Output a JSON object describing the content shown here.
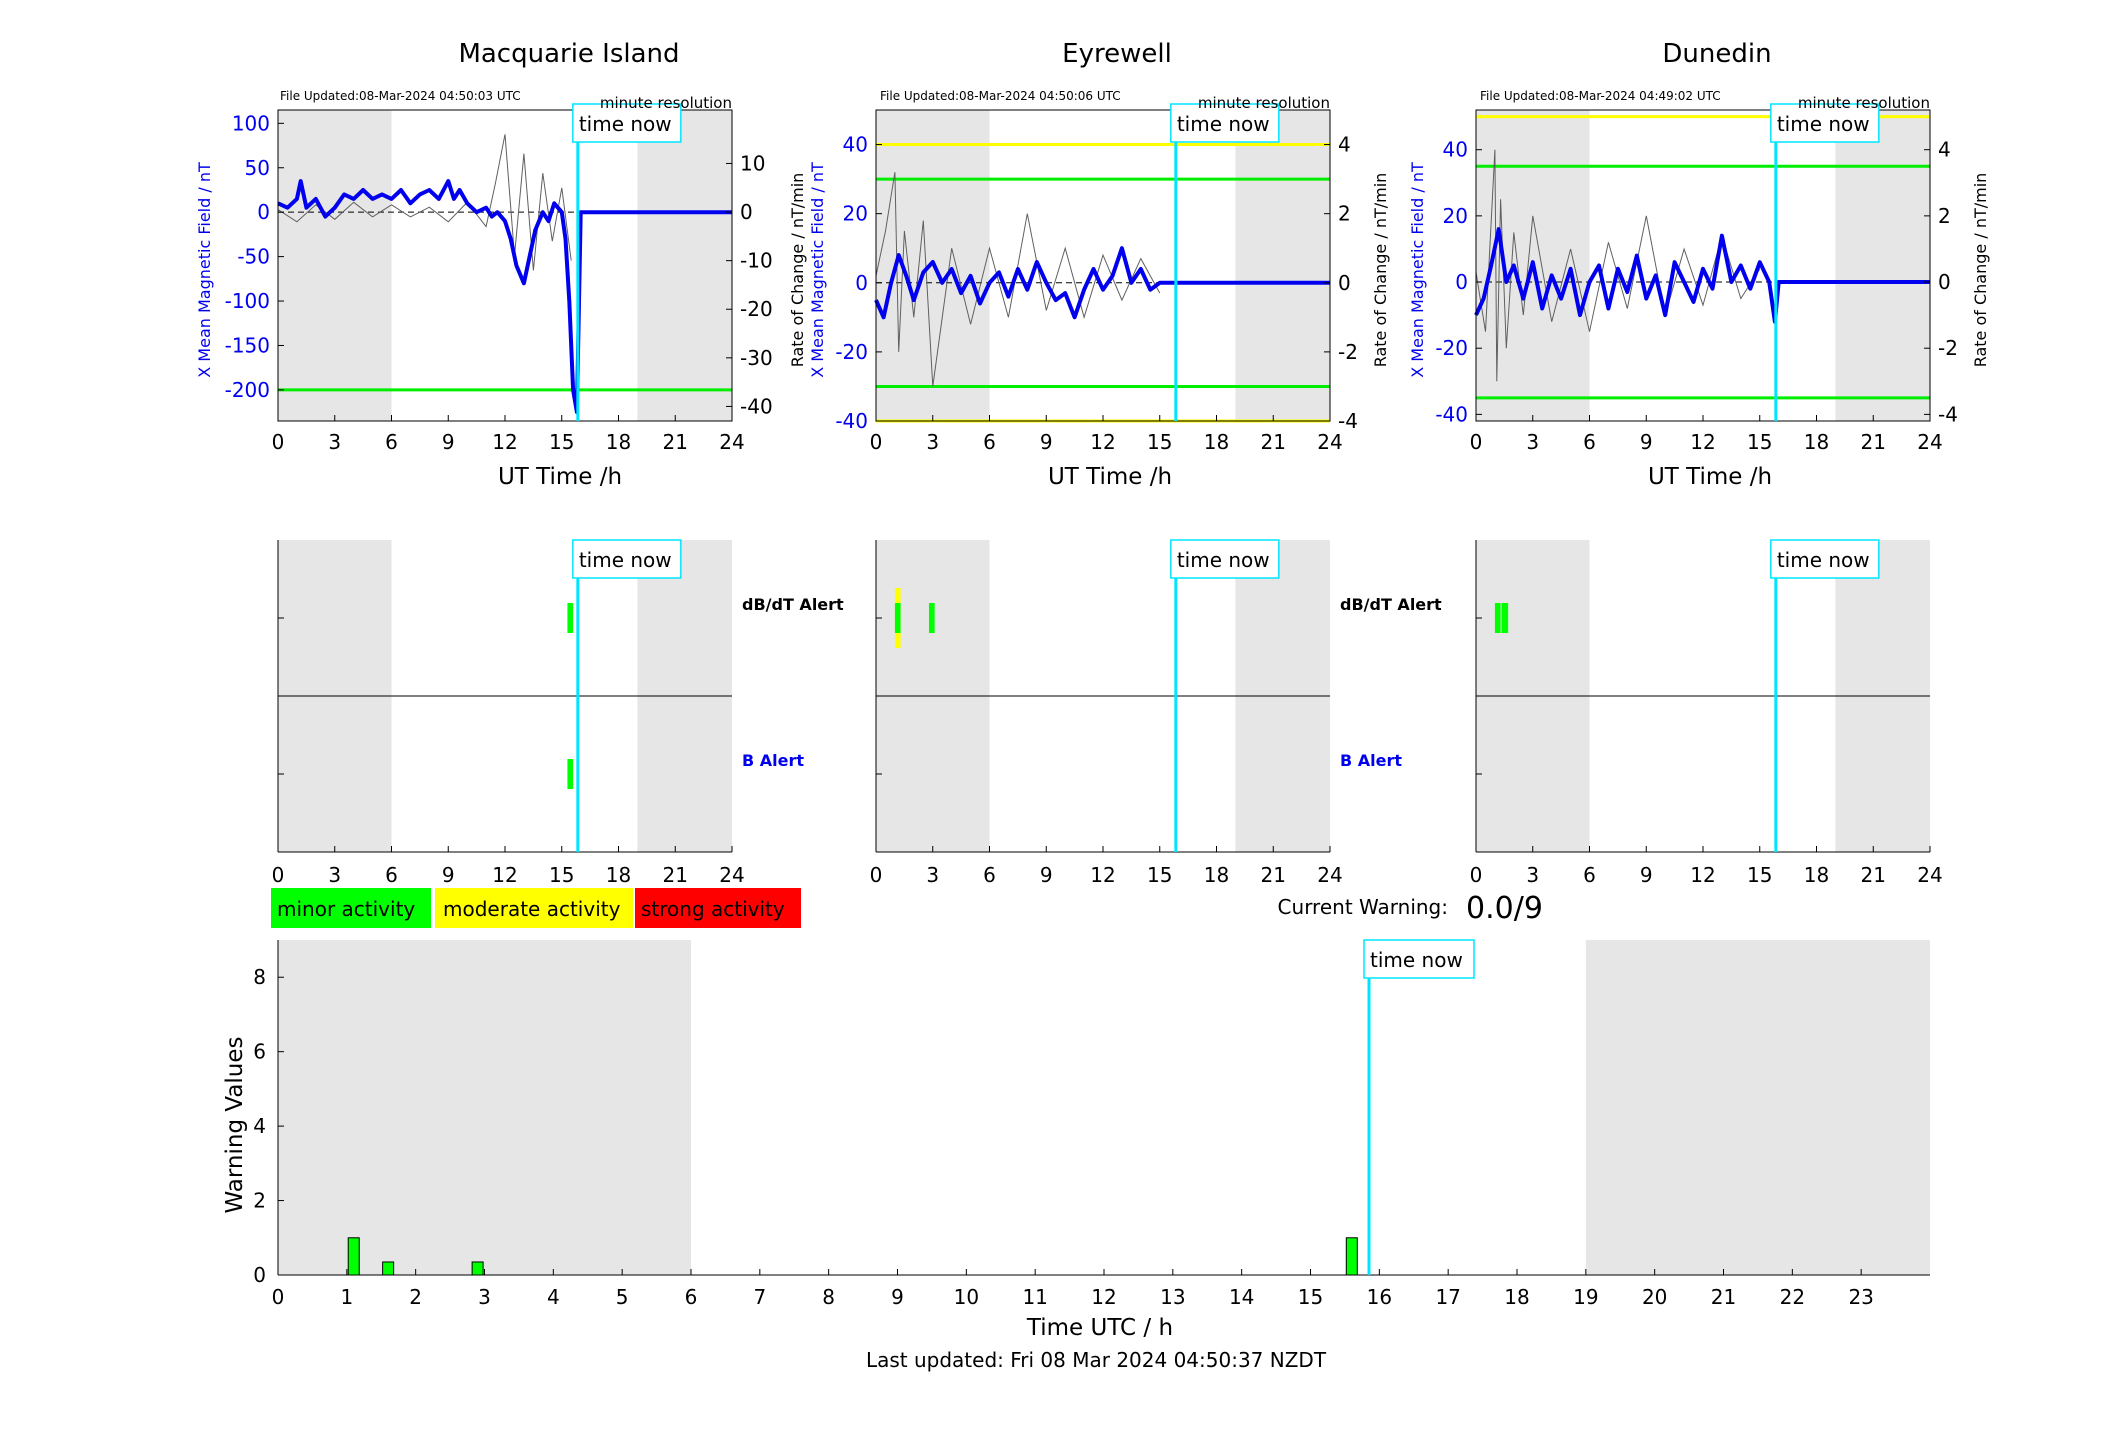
{
  "time_now_label": "time now",
  "now_hour": 15.85,
  "footer": {
    "last_updated": "Last updated: Fri 08 Mar 2024 04:50:37 NZDT"
  },
  "current_warning": {
    "label": "Current Warning:",
    "value": "0.0/9"
  },
  "legend": [
    {
      "label": "minor activity",
      "color": "#00ff00"
    },
    {
      "label": "moderate activity",
      "color": "#ffff00"
    },
    {
      "label": "strong activity",
      "color": "#ff0000"
    }
  ],
  "colors": {
    "field": "#0000ee",
    "threshold": "#00ee00",
    "threshold_high": "#ffff00",
    "now_line": "#00e5ff",
    "night_shade": "#e6e6e6",
    "rate": "#606060"
  },
  "chart_data": [
    {
      "type": "line",
      "title": "Macquarie Island",
      "file_updated": "File Updated:08-Mar-2024 04:50:03 UTC",
      "resolution": "minute resolution",
      "xlabel": "UT Time /h",
      "ylabel_left": "X Mean Magnetic Field / nT",
      "ylabel_right": "Rate of Change / nT/min",
      "xlim": [
        0,
        24
      ],
      "xticks": [
        0,
        3,
        6,
        9,
        12,
        15,
        18,
        21,
        24
      ],
      "ylim_left": [
        -235,
        115
      ],
      "yticks_left": [
        100,
        50,
        0,
        -50,
        -100,
        -150,
        -200
      ],
      "ylim_right": [
        -43,
        21
      ],
      "yticks_right": [
        10,
        0,
        -10,
        -20,
        -30,
        -40
      ],
      "night_shading": [
        [
          0,
          6
        ],
        [
          19,
          24
        ]
      ],
      "thresholds_left": [
        {
          "value": -200,
          "color": "#00ee00"
        }
      ],
      "field_x": [
        0,
        0.5,
        1,
        1.2,
        1.5,
        2,
        2.5,
        3,
        3.5,
        4,
        4.5,
        5,
        5.5,
        6,
        6.5,
        7,
        7.5,
        8,
        8.5,
        9,
        9.3,
        9.6,
        10,
        10.5,
        11,
        11.3,
        11.6,
        12,
        12.3,
        12.6,
        13,
        13.3,
        13.6,
        14,
        14.3,
        14.6,
        15,
        15.2,
        15.4,
        15.6,
        15.8,
        16,
        20,
        24
      ],
      "field_y": [
        10,
        5,
        15,
        35,
        5,
        15,
        -5,
        5,
        20,
        15,
        25,
        15,
        20,
        15,
        25,
        10,
        20,
        25,
        15,
        35,
        15,
        25,
        10,
        0,
        5,
        -5,
        0,
        -10,
        -30,
        -60,
        -80,
        -50,
        -20,
        0,
        -10,
        10,
        0,
        -30,
        -100,
        -200,
        -225,
        0,
        0,
        0
      ],
      "field_flat_from": 15.8,
      "rate_x": [
        0,
        1,
        2,
        3,
        4,
        5,
        6,
        7,
        8,
        9,
        10,
        11,
        11.5,
        12,
        12.5,
        13,
        13.5,
        14,
        14.5,
        15,
        15.5
      ],
      "rate_y": [
        0.5,
        -2,
        1.5,
        -1.5,
        2,
        -1,
        1.5,
        -1,
        1,
        -2,
        2,
        -3,
        6,
        16,
        -9,
        12,
        -12,
        8,
        -6,
        5,
        -10
      ]
    },
    {
      "type": "line",
      "title": "Eyrewell",
      "file_updated": "File Updated:08-Mar-2024 04:50:06 UTC",
      "resolution": "minute resolution",
      "xlabel": "UT Time /h",
      "ylabel_left": "X Mean Magnetic Field / nT",
      "ylabel_right": "Rate of Change / nT/min",
      "xlim": [
        0,
        24
      ],
      "xticks": [
        0,
        3,
        6,
        9,
        12,
        15,
        18,
        21,
        24
      ],
      "ylim_left": [
        -40,
        50
      ],
      "yticks_left": [
        40,
        20,
        0,
        -20,
        -40
      ],
      "ylim_right": [
        -4,
        5
      ],
      "yticks_right": [
        4,
        2,
        0,
        -2,
        -4
      ],
      "night_shading": [
        [
          0,
          6
        ],
        [
          19,
          24
        ]
      ],
      "thresholds_left": [
        {
          "value": 30,
          "color": "#00ee00"
        },
        {
          "value": -30,
          "color": "#00ee00"
        },
        {
          "value": 40,
          "color": "#ffff00"
        },
        {
          "value": -40,
          "color": "#ffff00"
        }
      ],
      "field_x": [
        0,
        0.4,
        0.8,
        1.2,
        1.6,
        2,
        2.5,
        3,
        3.5,
        4,
        4.5,
        5,
        5.5,
        6,
        6.5,
        7,
        7.5,
        8,
        8.5,
        9,
        9.5,
        10,
        10.5,
        11,
        11.5,
        12,
        12.5,
        13,
        13.5,
        14,
        14.5,
        15,
        16,
        20,
        24
      ],
      "field_y": [
        -5,
        -10,
        0,
        8,
        2,
        -5,
        3,
        6,
        0,
        4,
        -3,
        2,
        -6,
        0,
        3,
        -4,
        4,
        -2,
        6,
        0,
        -5,
        -3,
        -10,
        -2,
        4,
        -2,
        2,
        10,
        0,
        4,
        -2,
        0,
        0,
        0,
        0
      ],
      "field_flat_from": 15.5,
      "rate_x": [
        0,
        0.5,
        1,
        1.2,
        1.5,
        2,
        2.5,
        3,
        4,
        5,
        6,
        7,
        8,
        9,
        10,
        11,
        12,
        13,
        14,
        15
      ],
      "rate_y": [
        0.2,
        1.5,
        3.2,
        -2,
        1.5,
        -1,
        1.8,
        -3,
        1,
        -1.2,
        1,
        -1,
        2,
        -0.8,
        1,
        -1,
        0.8,
        -0.5,
        0.7,
        -0.3
      ]
    },
    {
      "type": "line",
      "title": "Dunedin",
      "file_updated": "File Updated:08-Mar-2024 04:49:02 UTC",
      "resolution": "minute resolution",
      "xlabel": "UT Time /h",
      "ylabel_left": "X Mean Magnetic Field / nT",
      "ylabel_right": "Rate of Change / nT/min",
      "xlim": [
        0,
        24
      ],
      "xticks": [
        0,
        3,
        6,
        9,
        12,
        15,
        18,
        21,
        24
      ],
      "ylim_left": [
        -42,
        52
      ],
      "yticks_left": [
        40,
        20,
        0,
        -20,
        -40
      ],
      "ylim_right": [
        -4.2,
        5.2
      ],
      "yticks_right": [
        4,
        2,
        0,
        -2,
        -4
      ],
      "night_shading": [
        [
          0,
          6
        ],
        [
          19,
          24
        ]
      ],
      "thresholds_left": [
        {
          "value": 35,
          "color": "#00ee00"
        },
        {
          "value": -35,
          "color": "#00ee00"
        },
        {
          "value": 50,
          "color": "#ffff00"
        }
      ],
      "field_x": [
        0,
        0.4,
        0.8,
        1.2,
        1.6,
        2,
        2.5,
        3,
        3.5,
        4,
        4.5,
        5,
        5.5,
        6,
        6.5,
        7,
        7.5,
        8,
        8.5,
        9,
        9.5,
        10,
        10.5,
        11,
        11.5,
        12,
        12.5,
        13,
        13.5,
        14,
        14.5,
        15,
        15.5,
        15.8,
        16,
        20,
        24
      ],
      "field_y": [
        -10,
        -5,
        5,
        16,
        0,
        5,
        -5,
        6,
        -8,
        2,
        -5,
        4,
        -10,
        0,
        5,
        -8,
        4,
        -3,
        8,
        -5,
        2,
        -10,
        6,
        0,
        -6,
        4,
        -2,
        14,
        0,
        5,
        -2,
        6,
        0,
        -12,
        0,
        0,
        0
      ],
      "field_flat_from": 15.8,
      "rate_x": [
        0,
        0.5,
        1,
        1.1,
        1.3,
        1.6,
        2,
        2.5,
        3,
        4,
        5,
        6,
        7,
        8,
        9,
        10,
        11,
        12,
        13,
        14,
        15
      ],
      "rate_y": [
        0.3,
        -1.5,
        4,
        -3,
        2.5,
        -2,
        1.5,
        -1,
        2,
        -1.2,
        1,
        -1.5,
        1.2,
        -0.8,
        2,
        -1,
        1,
        -0.7,
        1.4,
        -0.5,
        0.4
      ]
    },
    {
      "type": "bar",
      "name": "alerts",
      "xlim": [
        0,
        24
      ],
      "xticks": [
        0,
        3,
        6,
        9,
        12,
        15,
        18,
        21,
        24
      ],
      "row_labels": [
        "dB/dT Alert",
        "B Alert"
      ],
      "panels": [
        {
          "station": "Macquarie Island",
          "night_shading": [
            [
              0,
              6
            ],
            [
              19,
              24
            ]
          ],
          "dbdt_alerts": [
            {
              "start": 15.3,
              "end": 15.6,
              "level": "minor"
            }
          ],
          "b_alerts": [
            {
              "start": 15.3,
              "end": 15.6,
              "level": "minor"
            }
          ]
        },
        {
          "station": "Eyrewell",
          "night_shading": [
            [
              0,
              6
            ],
            [
              19,
              24
            ]
          ],
          "dbdt_alerts": [
            {
              "start": 1.0,
              "end": 1.3,
              "level": "moderate"
            },
            {
              "start": 1.0,
              "end": 1.3,
              "level": "minor"
            },
            {
              "start": 2.8,
              "end": 3.1,
              "level": "minor"
            }
          ],
          "b_alerts": []
        },
        {
          "station": "Dunedin",
          "night_shading": [
            [
              0,
              6
            ],
            [
              19,
              24
            ]
          ],
          "dbdt_alerts": [
            {
              "start": 1.0,
              "end": 1.3,
              "level": "minor"
            },
            {
              "start": 1.35,
              "end": 1.7,
              "level": "minor"
            }
          ],
          "b_alerts": []
        }
      ]
    },
    {
      "type": "bar",
      "name": "warning",
      "xlabel": "Time UTC / h",
      "ylabel": "Warning Values",
      "xlim": [
        0,
        24
      ],
      "xticks": [
        0,
        1,
        2,
        3,
        4,
        5,
        6,
        7,
        8,
        9,
        10,
        11,
        12,
        13,
        14,
        15,
        16,
        17,
        18,
        19,
        20,
        21,
        22,
        23
      ],
      "ylim": [
        0,
        9
      ],
      "yticks": [
        0,
        2,
        4,
        6,
        8
      ],
      "night_shading": [
        [
          0,
          6
        ],
        [
          19,
          24
        ]
      ],
      "bars": [
        {
          "x": 1.1,
          "value": 1.0
        },
        {
          "x": 1.6,
          "value": 0.35
        },
        {
          "x": 2.9,
          "value": 0.35
        },
        {
          "x": 15.6,
          "value": 1.0
        }
      ]
    }
  ]
}
